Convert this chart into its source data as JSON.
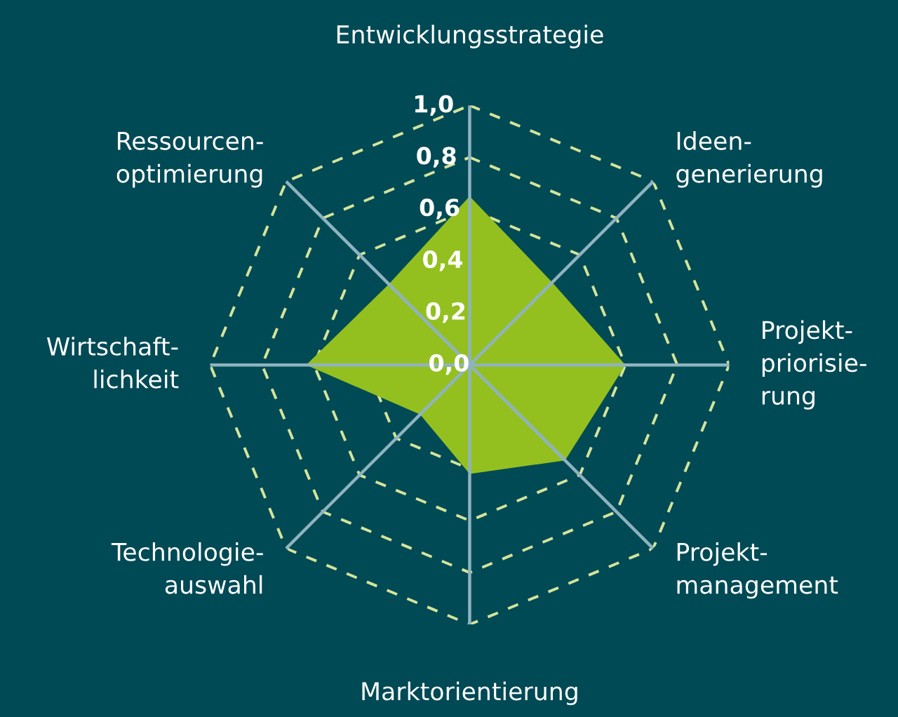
{
  "chart_data": {
    "type": "radar",
    "categories": [
      "Entwicklungsstrategie",
      "Ideen-\ngenerierung",
      "Projekt-\npriorisie-\nrung",
      "Projekt-\nmanagement",
      "Marktorientierung",
      "Technologie-\nauswahl",
      "Wirtschaft-\nlichkeit",
      "Ressourcen-\noptimierung"
    ],
    "series": [
      {
        "color": "#93c01f",
        "values": [
          0.65,
          0.45,
          0.6,
          0.52,
          0.42,
          0.27,
          0.63,
          0.44
        ]
      }
    ],
    "ylim": [
      0,
      1
    ],
    "yticks": [
      {
        "value": 0,
        "label": "0,0"
      },
      {
        "value": 0.2,
        "label": "0,2"
      },
      {
        "value": 0.4,
        "label": "0,4"
      },
      {
        "value": 0.6,
        "label": "0,6"
      },
      {
        "value": 0.8,
        "label": "0,8"
      },
      {
        "value": 1,
        "label": "1,0"
      }
    ],
    "grid": true,
    "line_style": "dashed",
    "marker": "none"
  }
}
